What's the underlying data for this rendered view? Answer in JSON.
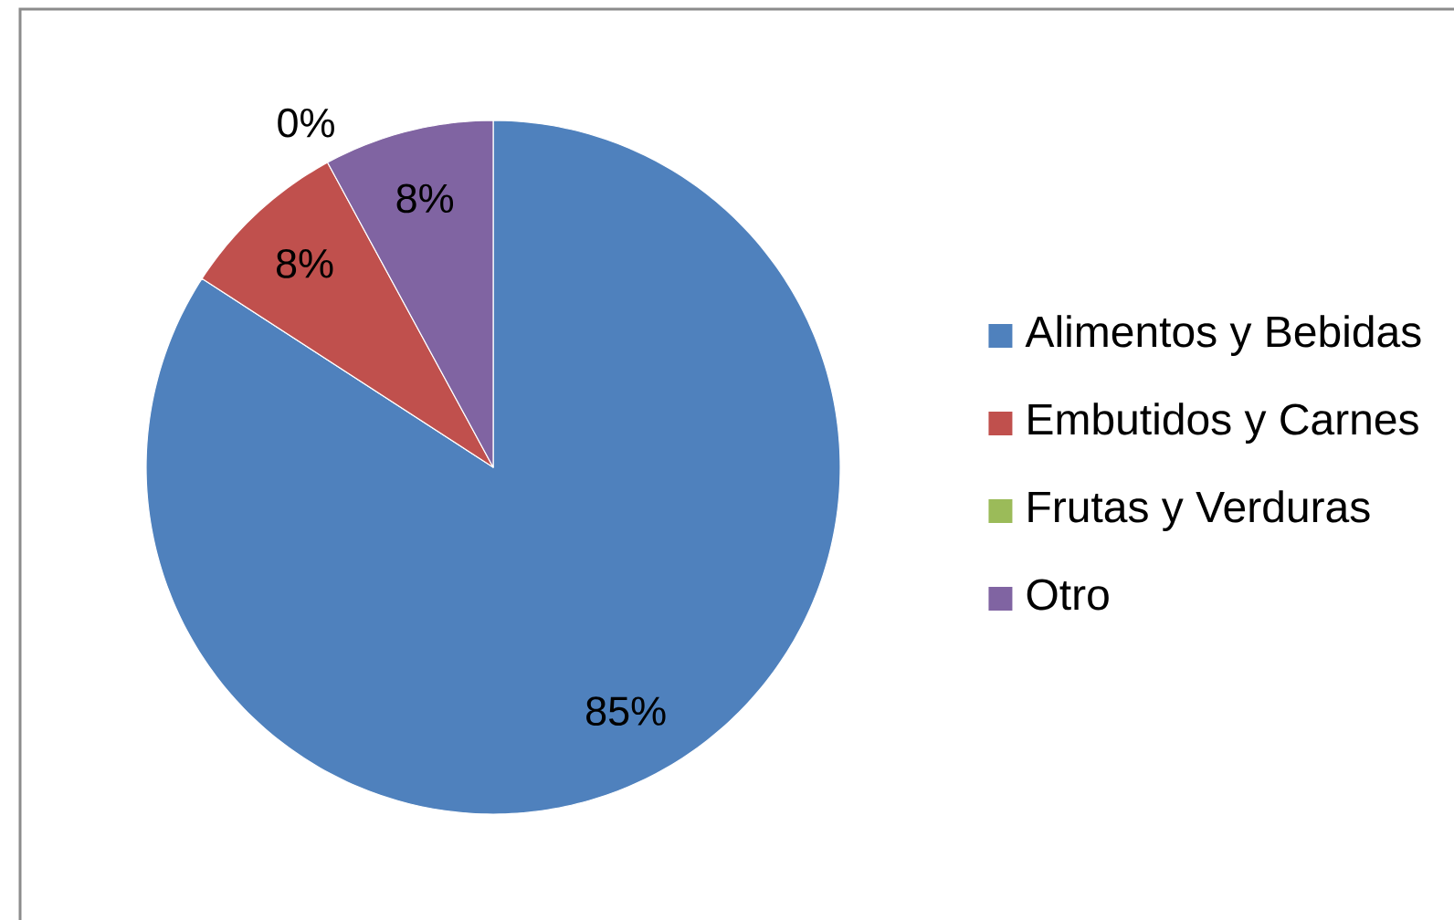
{
  "chart_data": {
    "type": "pie",
    "categories": [
      "Alimentos y Bebidas",
      "Embutidos y Carnes",
      "Frutas y Verduras",
      "Otro"
    ],
    "values": [
      85,
      8,
      0,
      8
    ],
    "colors": [
      "#4f81bd",
      "#c0504d",
      "#9bbb59",
      "#8064a2"
    ],
    "value_labels": [
      "85%",
      "8%",
      "0%",
      "8%"
    ],
    "legend": "right"
  }
}
